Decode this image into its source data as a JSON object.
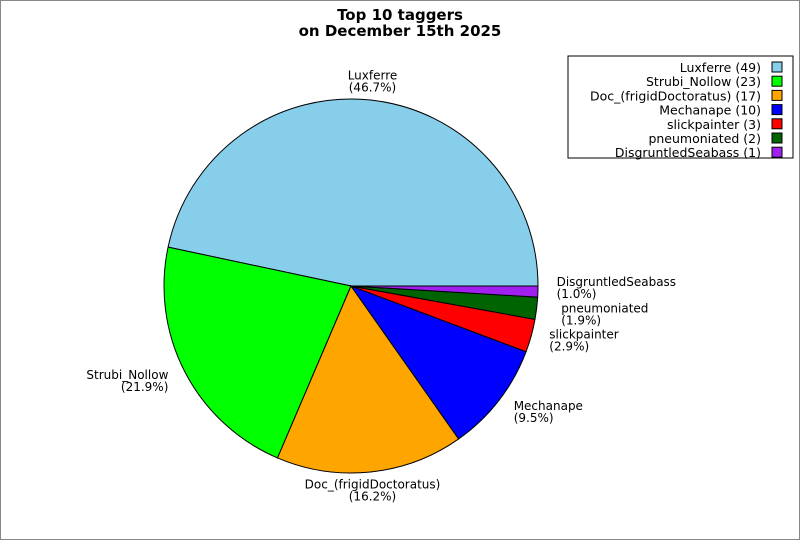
{
  "chart_data": {
    "type": "pie",
    "title_lines": [
      "Top 10 taggers",
      "on December 15th 2025"
    ],
    "legend_position": "top-right",
    "slices": [
      {
        "name": "Luxferre",
        "value": 49,
        "percent_label": "(46.7%)",
        "legend_label": "Luxferre (49)",
        "color": "#87ceeb"
      },
      {
        "name": "Strubi_Nollow",
        "value": 23,
        "percent_label": "(21.9%)",
        "legend_label": "Strubi_Nollow (23)",
        "color": "#00ff00"
      },
      {
        "name": "Doc_(frigidDoctoratus)",
        "value": 17,
        "percent_label": "(16.2%)",
        "legend_label": "Doc_(frigidDoctoratus) (17)",
        "color": "#ffa500"
      },
      {
        "name": "Mechanape",
        "value": 10,
        "percent_label": "(9.5%)",
        "legend_label": "Mechanape (10)",
        "color": "#0000ff"
      },
      {
        "name": "slickpainter",
        "value": 3,
        "percent_label": "(2.9%)",
        "legend_label": "slickpainter (3)",
        "color": "#ff0000"
      },
      {
        "name": "pneumoniated",
        "value": 2,
        "percent_label": "(1.9%)",
        "legend_label": "pneumoniated (2)",
        "color": "#006400"
      },
      {
        "name": "DisgruntledSeabass",
        "value": 1,
        "percent_label": "(1.0%)",
        "legend_label": "DisgruntledSeabass (1)",
        "color": "#a020f0"
      }
    ]
  }
}
